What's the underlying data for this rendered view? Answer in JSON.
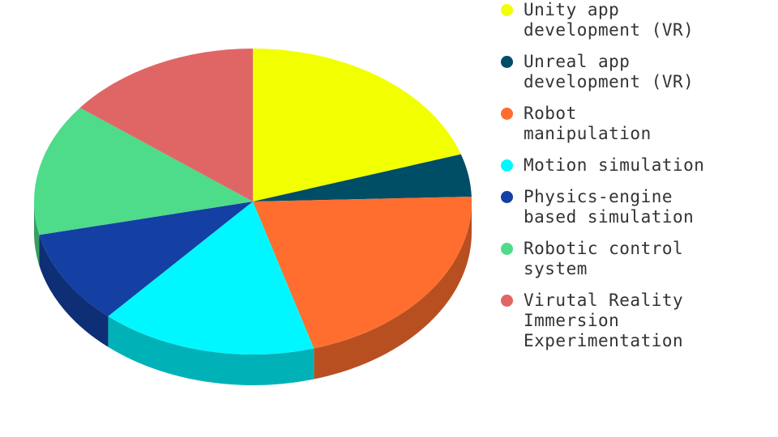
{
  "chart_data": {
    "type": "pie",
    "style": "3d",
    "legend_position": "right",
    "slices": [
      {
        "label": "Unity app development (VR)",
        "display": "Unity app\ndevelopment (VR)",
        "value": 20,
        "color": "#f2ff00"
      },
      {
        "label": "Unreal app development (VR)",
        "display": "Unreal app\ndevelopment (VR)",
        "value": 4.5,
        "color": "#004d66"
      },
      {
        "label": "Robot manipulation",
        "display": "Robot\nmanipulation",
        "value": 21,
        "color": "#ff6e2e"
      },
      {
        "label": "Motion simulation",
        "display": "Motion simulation",
        "value": 16,
        "color": "#00f7ff"
      },
      {
        "label": "Physics-engine based simulation",
        "display": "Physics-engine\nbased simulation",
        "value": 10,
        "color": "#1440a3"
      },
      {
        "label": "Robotic control system",
        "display": "Robotic control\nsystem",
        "value": 14,
        "color": "#4edb8a"
      },
      {
        "label": "Virutal Reality Immersion Experimentation",
        "display": "Virutal Reality\nImmersion\nExperimentation",
        "value": 14.5,
        "color": "#e06666"
      }
    ]
  }
}
